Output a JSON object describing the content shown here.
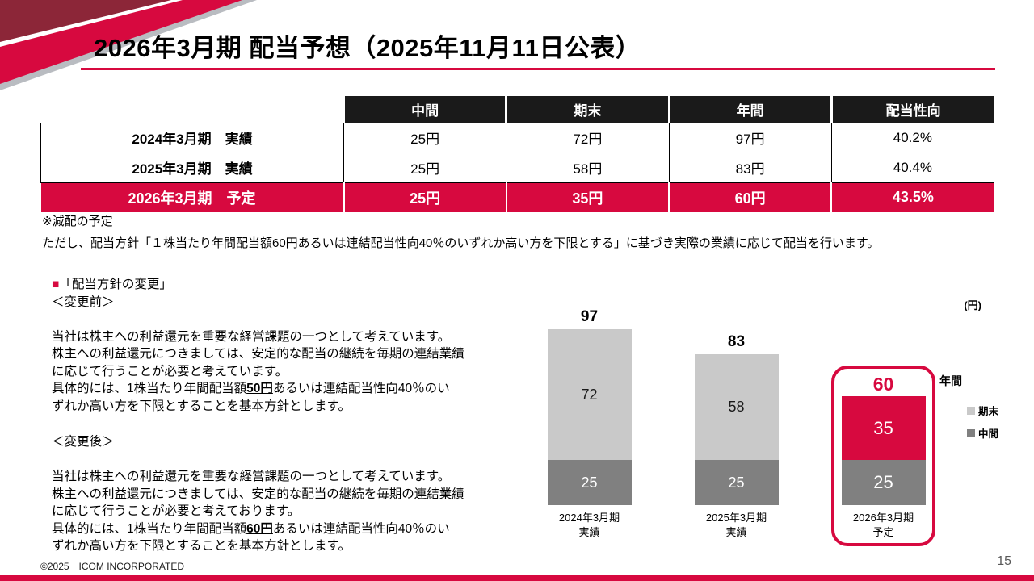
{
  "accent_color": "#d7093f",
  "slide": {
    "title": "2026年3月期 配当予想（2025年11月11日公表）",
    "footer": "©2025　ICOM INCORPORATED",
    "page_number": "15"
  },
  "table": {
    "headers": [
      "",
      "中間",
      "期末",
      "年間",
      "配当性向"
    ],
    "rows": [
      {
        "label": "2024年3月期　実績",
        "values": [
          "25円",
          "72円",
          "97円",
          "40.2%"
        ]
      },
      {
        "label": "2025年3月期　実績",
        "values": [
          "25円",
          "58円",
          "83円",
          "40.4%"
        ]
      },
      {
        "label": "2026年3月期　予定",
        "values": [
          "25円",
          "35円",
          "60円",
          "43.5%"
        ]
      }
    ]
  },
  "notes": {
    "note1": "※減配の予定",
    "note2": "ただし、配当方針「１株当たり年間配当額60円あるいは連結配当性向40％のいずれか高い方を下限とする」に基づき実際の業績に応じて配当を行います。"
  },
  "policy": {
    "bullet": "■",
    "heading": "「配当方針の変更」",
    "before_label": "＜変更前＞",
    "before_part1": "当社は株主への利益還元を重要な経営課題の一つとして考えています。\n株主への利益還元につきましては、安定的な配当の継続を毎期の連結業績\nに応じて行うことが必要と考えています。\n具体的には、1株当たり年間配当額",
    "before_amount": "50円",
    "before_part2": "あるいは連結配当性向40％のい\nずれか高い方を下限とすることを基本方針とします。",
    "after_label": "＜変更後＞",
    "after_part1": "当社は株主への利益還元を重要な経営課題の一つとして考えています。\n株主への利益還元につきましては、安定的な配当の継続を毎期の連結業績\nに応じて行うことが必要と考えております。\n具体的には、1株当たり年間配当額",
    "after_amount": "60円",
    "after_part2": "あるいは連結配当性向40％のい\nずれか高い方を下限とすることを基本方針とします。"
  },
  "chart_data": {
    "type": "bar",
    "stacked": true,
    "unit_label": "(円)",
    "categories": [
      "2024年3月期\n実績",
      "2025年3月期\n実績",
      "2026年3月期\n予定"
    ],
    "series": [
      {
        "name": "中間",
        "values": [
          25,
          25,
          25
        ],
        "colors": [
          "#808080",
          "#808080",
          "#808080"
        ],
        "label_colors": [
          "#ffffff",
          "#ffffff",
          "#ffffff"
        ]
      },
      {
        "name": "期末",
        "values": [
          72,
          58,
          35
        ],
        "colors": [
          "#c9c9c9",
          "#c9c9c9",
          "#d7093f"
        ],
        "label_colors": [
          "#1a1a1a",
          "#1a1a1a",
          "#ffffff"
        ]
      }
    ],
    "totals": [
      97,
      83,
      60
    ],
    "highlight_index": 2,
    "ylim": [
      0,
      100
    ],
    "grid": false,
    "legend_position": "right",
    "legend": {
      "title": "年間",
      "items": [
        {
          "label": "期末",
          "color": "#c9c9c9"
        },
        {
          "label": "中間",
          "color": "#808080"
        }
      ]
    }
  }
}
